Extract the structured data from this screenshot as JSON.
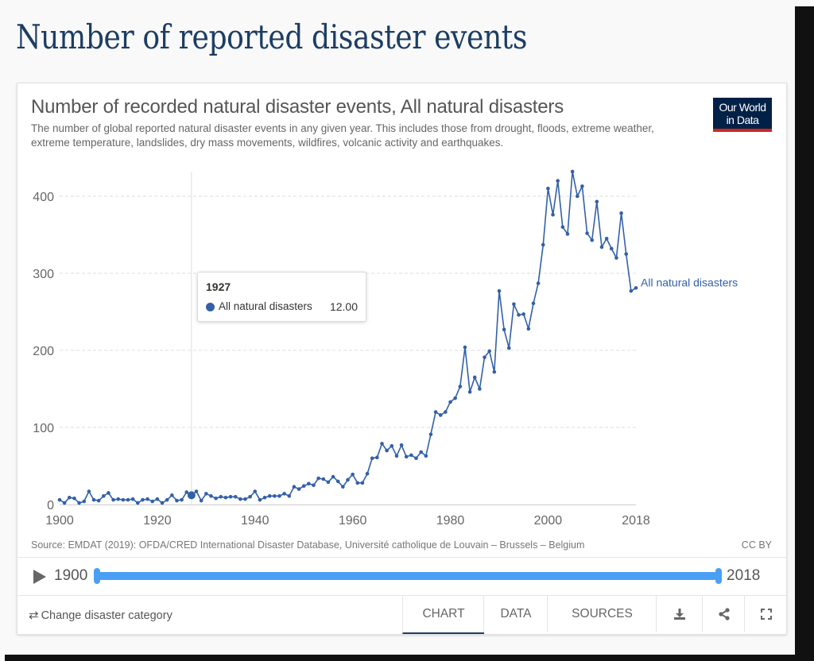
{
  "page": {
    "title": "Number of reported disaster events"
  },
  "card": {
    "title": "Number of recorded natural disaster events, All natural disasters",
    "subtitle": "The number of global reported natural disaster events in any given year. This includes those from drought, floods, extreme weather, extreme temperature, landslides, dry mass movements, wildfires, volcanic activity and earthquakes.",
    "logo_line1": "Our World",
    "logo_line2": "in Data",
    "source": "Source: EMDAT (2019): OFDA/CRED International Disaster Database, Université catholique de Louvain – Brussels – Belgium",
    "license": "CC BY"
  },
  "tooltip": {
    "year": "1927",
    "series_name": "All natural disasters",
    "value": "12.00"
  },
  "timeline": {
    "start_label": "1900",
    "end_label": "2018",
    "range_start": 1900,
    "range_end": 2018
  },
  "controls": {
    "change_category_label": "Change disaster category",
    "tabs": [
      {
        "label": "CHART",
        "active": true
      },
      {
        "label": "DATA",
        "active": false
      },
      {
        "label": "SOURCES",
        "active": false
      }
    ],
    "icons": [
      "download-icon",
      "share-icon",
      "fullscreen-icon"
    ]
  },
  "colors": {
    "series": "#3360a9",
    "title": "#1d3d63",
    "logo_bg": "#002147",
    "logo_accent": "#ce261e",
    "timeline": "#4a9ff5"
  },
  "chart_data": {
    "type": "line",
    "title": "Number of recorded natural disaster events, All natural disasters",
    "xlabel": "",
    "ylabel": "",
    "xlim": [
      1900,
      2018
    ],
    "ylim": [
      0,
      440
    ],
    "x_ticks": [
      1900,
      1920,
      1940,
      1960,
      1980,
      2000,
      2018
    ],
    "y_ticks": [
      0,
      100,
      200,
      300,
      400
    ],
    "grid": "horizontal-dashed",
    "legend": "inline-right",
    "highlight": {
      "x": 1927,
      "value": 12
    },
    "series": [
      {
        "name": "All natural disasters",
        "x_start": 1900,
        "values": [
          6,
          2,
          9,
          8,
          2,
          4,
          17,
          6,
          5,
          11,
          15,
          6,
          7,
          6,
          6,
          7,
          2,
          6,
          7,
          4,
          7,
          2,
          6,
          12,
          5,
          6,
          16,
          12,
          17,
          5,
          14,
          11,
          8,
          10,
          9,
          10,
          10,
          7,
          7,
          10,
          17,
          6,
          9,
          11,
          11,
          11,
          14,
          11,
          23,
          20,
          24,
          27,
          25,
          34,
          33,
          29,
          36,
          30,
          23,
          32,
          39,
          28,
          28,
          40,
          60,
          61,
          79,
          70,
          76,
          63,
          77,
          62,
          64,
          60,
          68,
          63,
          91,
          120,
          116,
          120,
          133,
          138,
          153,
          204,
          146,
          165,
          150,
          191,
          199,
          172,
          277,
          227,
          203,
          260,
          246,
          247,
          228,
          261,
          287,
          337,
          410,
          376,
          420,
          360,
          351,
          432,
          400,
          413,
          352,
          343,
          393,
          334,
          345,
          332,
          320,
          378,
          325,
          277,
          281
        ]
      }
    ]
  }
}
